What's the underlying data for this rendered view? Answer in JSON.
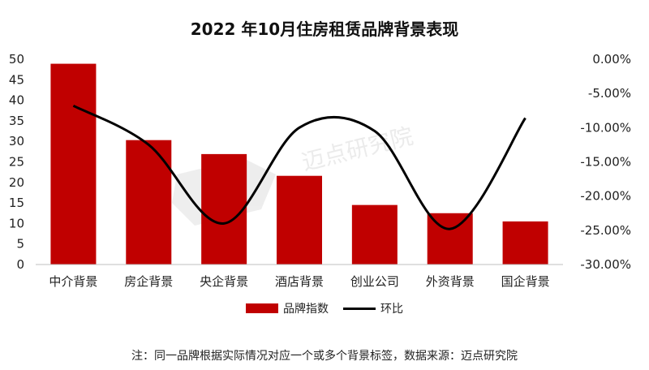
{
  "chart_data": {
    "type": "bar",
    "title": "2022 年10月住房租赁品牌背景表现",
    "categories": [
      "中介背景",
      "房企背景",
      "央企背景",
      "酒店背景",
      "创业公司",
      "外资背景",
      "国企背景"
    ],
    "series": [
      {
        "name": "品牌指数",
        "type": "bar",
        "axis": "left",
        "color": "#c00000",
        "values": [
          48.9,
          30.3,
          26.9,
          21.6,
          14.5,
          12.5,
          10.5
        ]
      },
      {
        "name": "环比",
        "type": "line",
        "axis": "right",
        "color": "#000000",
        "values": [
          -6.8,
          -12.5,
          -24.0,
          -10.0,
          -10.5,
          -24.8,
          -8.6
        ]
      }
    ],
    "y_left": {
      "min": 0,
      "max": 50,
      "step": 5,
      "ticks": [
        "0",
        "5",
        "10",
        "15",
        "20",
        "25",
        "30",
        "35",
        "40",
        "45",
        "50"
      ]
    },
    "y_right": {
      "min": -30,
      "max": 0,
      "step": 5,
      "ticks": [
        "-30.00%",
        "-25.00%",
        "-20.00%",
        "-15.00%",
        "-10.00%",
        "-5.00%",
        "0.00%"
      ]
    },
    "grid": false,
    "legend": "bottom"
  },
  "watermark": "迈点研究院",
  "footnote": "注：同一品牌根据实际情况对应一个或多个背景标签，数据来源：迈点研究院"
}
